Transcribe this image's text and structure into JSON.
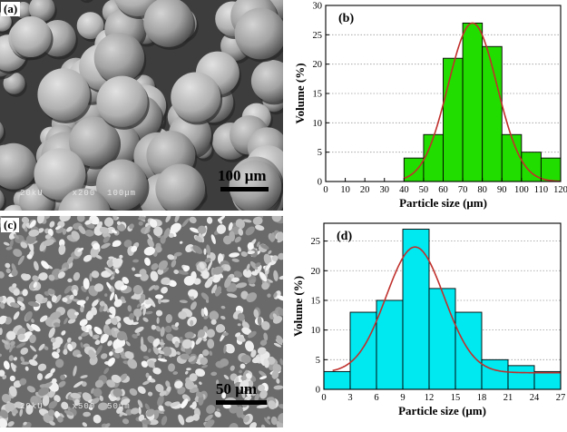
{
  "panels": {
    "a": {
      "label": "(a)",
      "scale_bar": "100 μm",
      "micro_bar": {
        "voltage": "20kU",
        "magnification": "x200",
        "scale": "100μm"
      }
    },
    "c": {
      "label": "(c)",
      "scale_bar": "50 μm",
      "micro_bar": {
        "voltage": "20kU",
        "magnification": "x500",
        "scale": "50μm"
      }
    }
  },
  "chart_data": [
    {
      "panel": "(b)",
      "type": "bar",
      "xlabel": "Particle size (μm)",
      "ylabel": "Volume (%)",
      "xlim": [
        0,
        120
      ],
      "ylim": [
        0,
        30
      ],
      "xticks": [
        0,
        10,
        20,
        30,
        40,
        50,
        60,
        70,
        80,
        90,
        100,
        110,
        120
      ],
      "yticks": [
        0,
        5,
        10,
        15,
        20,
        25,
        30
      ],
      "grid": "horizontal dotted",
      "bar_color": "#22dd00",
      "curve_color": "#c0302c",
      "bins": [
        {
          "from": 40,
          "to": 50,
          "value": 4
        },
        {
          "from": 50,
          "to": 60,
          "value": 8
        },
        {
          "from": 60,
          "to": 70,
          "value": 21
        },
        {
          "from": 70,
          "to": 80,
          "value": 27
        },
        {
          "from": 80,
          "to": 90,
          "value": 23
        },
        {
          "from": 90,
          "to": 100,
          "value": 8
        },
        {
          "from": 100,
          "to": 110,
          "value": 5
        },
        {
          "from": 110,
          "to": 120,
          "value": 4
        }
      ],
      "fit": {
        "type": "gaussian",
        "mean": 75,
        "peak": 27,
        "sigma": 12.5,
        "x": [
          40,
          120
        ]
      }
    },
    {
      "panel": "(d)",
      "type": "bar",
      "xlabel": "Particle size (μm)",
      "ylabel": "Volume (%)",
      "xlim": [
        0,
        27
      ],
      "ylim": [
        0,
        28
      ],
      "xticks": [
        0,
        3,
        6,
        9,
        12,
        15,
        18,
        21,
        24,
        27
      ],
      "yticks": [
        0,
        5,
        10,
        15,
        20,
        25
      ],
      "grid": "horizontal dotted",
      "bar_color": "#00e8f0",
      "curve_color": "#c0302c",
      "bins": [
        {
          "from": 0,
          "to": 3,
          "value": 3
        },
        {
          "from": 3,
          "to": 6,
          "value": 13
        },
        {
          "from": 6,
          "to": 9,
          "value": 15
        },
        {
          "from": 9,
          "to": 12,
          "value": 27
        },
        {
          "from": 12,
          "to": 15,
          "value": 17
        },
        {
          "from": 15,
          "to": 18,
          "value": 13
        },
        {
          "from": 18,
          "to": 21,
          "value": 5
        },
        {
          "from": 21,
          "to": 24,
          "value": 4
        },
        {
          "from": 24,
          "to": 27,
          "value": 3
        }
      ],
      "fit": {
        "type": "gaussian",
        "mean": 10.4,
        "peak": 24,
        "sigma": 3.3,
        "baseline": 2.8,
        "x": [
          1,
          27
        ]
      }
    }
  ]
}
